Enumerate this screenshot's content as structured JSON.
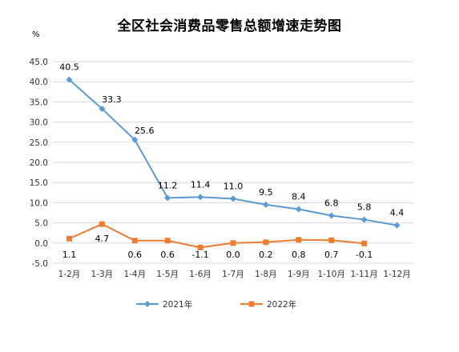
{
  "chart_data": {
    "type": "line",
    "title": "全区社会消费品零售总额增速走势图",
    "ylabel": "%",
    "xlabel": "",
    "ylim": [
      -5,
      45
    ],
    "yticks": [
      45.0,
      40.0,
      35.0,
      30.0,
      25.0,
      20.0,
      15.0,
      10.0,
      5.0,
      0.0,
      -5.0
    ],
    "ytick_labels": [
      "45.0",
      "40.0",
      "35.0",
      "30.0",
      "25.0",
      "20.0",
      "15.0",
      "10.0",
      "5.0",
      "0.0",
      "-5.0"
    ],
    "grid": true,
    "legend_position": "bottom",
    "categories": [
      "1-2月",
      "1-3月",
      "1-4月",
      "1-5月",
      "1-6月",
      "1-7月",
      "1-8月",
      "1-9月",
      "1-10月",
      "1-11月",
      "1-12月"
    ],
    "series": [
      {
        "name": "2021年",
        "color": "#5B9BD5",
        "marker": "diamond",
        "values": [
          40.5,
          33.3,
          25.6,
          11.2,
          11.4,
          11.0,
          9.5,
          8.4,
          6.8,
          5.8,
          4.4
        ],
        "labels": [
          "40.5",
          "33.3",
          "25.6",
          "11.2",
          "11.4",
          "11.0",
          "9.5",
          "8.4",
          "6.8",
          "5.8",
          "4.4"
        ]
      },
      {
        "name": "2022年",
        "color": "#ED7D31",
        "marker": "square",
        "values": [
          1.1,
          4.7,
          0.6,
          0.6,
          -1.1,
          0.0,
          0.2,
          0.8,
          0.7,
          -0.1,
          null
        ],
        "labels": [
          "1.1",
          "4.7",
          "0.6",
          "0.6",
          "-1.1",
          "0.0",
          "0.2",
          "0.8",
          "0.7",
          "-0.1",
          null
        ]
      }
    ]
  }
}
